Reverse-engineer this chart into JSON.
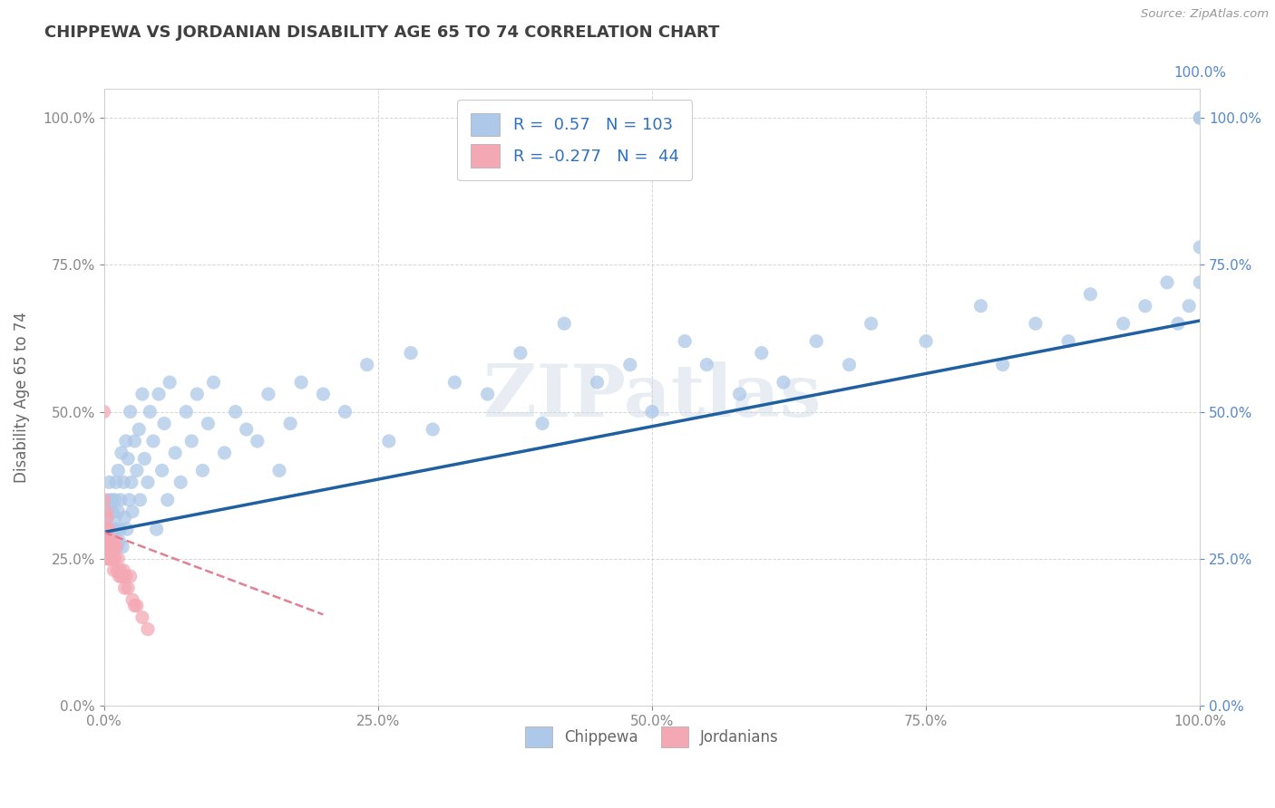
{
  "title": "CHIPPEWA VS JORDANIAN DISABILITY AGE 65 TO 74 CORRELATION CHART",
  "source": "Source: ZipAtlas.com",
  "ylabel": "Disability Age 65 to 74",
  "watermark": "ZIPatlas",
  "chippewa_R": 0.57,
  "chippewa_N": 103,
  "jordanian_R": -0.277,
  "jordanian_N": 44,
  "chippewa_color": "#adc8e8",
  "jordanian_color": "#f4a8b4",
  "chippewa_line_color": "#2060a0",
  "jordanian_line_color": "#e08090",
  "background_color": "#ffffff",
  "grid_color": "#bbbbbb",
  "title_color": "#404040",
  "legend_text_color": "#3070c0",
  "x_min": 0.0,
  "x_max": 1.0,
  "y_min": 0.0,
  "y_max": 1.05,
  "chippewa_x": [
    0.002,
    0.003,
    0.003,
    0.004,
    0.005,
    0.005,
    0.006,
    0.006,
    0.007,
    0.007,
    0.008,
    0.008,
    0.009,
    0.009,
    0.01,
    0.01,
    0.011,
    0.012,
    0.012,
    0.013,
    0.013,
    0.014,
    0.015,
    0.015,
    0.016,
    0.017,
    0.018,
    0.019,
    0.02,
    0.021,
    0.022,
    0.023,
    0.024,
    0.025,
    0.026,
    0.028,
    0.03,
    0.032,
    0.033,
    0.035,
    0.037,
    0.04,
    0.042,
    0.045,
    0.048,
    0.05,
    0.053,
    0.055,
    0.058,
    0.06,
    0.065,
    0.07,
    0.075,
    0.08,
    0.085,
    0.09,
    0.095,
    0.1,
    0.11,
    0.12,
    0.13,
    0.14,
    0.15,
    0.16,
    0.17,
    0.18,
    0.2,
    0.22,
    0.24,
    0.26,
    0.28,
    0.3,
    0.32,
    0.35,
    0.38,
    0.4,
    0.42,
    0.45,
    0.48,
    0.5,
    0.53,
    0.55,
    0.58,
    0.6,
    0.62,
    0.65,
    0.68,
    0.7,
    0.75,
    0.8,
    0.82,
    0.85,
    0.88,
    0.9,
    0.93,
    0.95,
    0.97,
    0.98,
    0.99,
    1.0,
    1.0,
    1.0,
    1.0
  ],
  "chippewa_y": [
    0.28,
    0.32,
    0.3,
    0.35,
    0.27,
    0.38,
    0.3,
    0.33,
    0.25,
    0.35,
    0.28,
    0.33,
    0.3,
    0.27,
    0.35,
    0.32,
    0.38,
    0.3,
    0.27,
    0.33,
    0.4,
    0.28,
    0.35,
    0.3,
    0.43,
    0.27,
    0.38,
    0.32,
    0.45,
    0.3,
    0.42,
    0.35,
    0.5,
    0.38,
    0.33,
    0.45,
    0.4,
    0.47,
    0.35,
    0.53,
    0.42,
    0.38,
    0.5,
    0.45,
    0.3,
    0.53,
    0.4,
    0.48,
    0.35,
    0.55,
    0.43,
    0.38,
    0.5,
    0.45,
    0.53,
    0.4,
    0.48,
    0.55,
    0.43,
    0.5,
    0.47,
    0.45,
    0.53,
    0.4,
    0.48,
    0.55,
    0.53,
    0.5,
    0.58,
    0.45,
    0.6,
    0.47,
    0.55,
    0.53,
    0.6,
    0.48,
    0.65,
    0.55,
    0.58,
    0.5,
    0.62,
    0.58,
    0.53,
    0.6,
    0.55,
    0.62,
    0.58,
    0.65,
    0.62,
    0.68,
    0.58,
    0.65,
    0.62,
    0.7,
    0.65,
    0.68,
    0.72,
    0.65,
    0.68,
    1.0,
    1.0,
    0.78,
    0.72
  ],
  "jordanian_x": [
    0.001,
    0.001,
    0.002,
    0.002,
    0.002,
    0.003,
    0.003,
    0.003,
    0.003,
    0.004,
    0.004,
    0.004,
    0.005,
    0.005,
    0.005,
    0.006,
    0.006,
    0.007,
    0.007,
    0.008,
    0.008,
    0.009,
    0.009,
    0.01,
    0.01,
    0.011,
    0.012,
    0.013,
    0.014,
    0.015,
    0.016,
    0.017,
    0.018,
    0.019,
    0.02,
    0.022,
    0.024,
    0.026,
    0.028,
    0.03,
    0.035,
    0.04,
    0.0,
    0.0
  ],
  "jordanian_y": [
    0.3,
    0.28,
    0.33,
    0.3,
    0.27,
    0.32,
    0.3,
    0.27,
    0.25,
    0.3,
    0.27,
    0.25,
    0.28,
    0.27,
    0.25,
    0.28,
    0.25,
    0.28,
    0.25,
    0.27,
    0.25,
    0.27,
    0.23,
    0.28,
    0.25,
    0.27,
    0.23,
    0.25,
    0.22,
    0.23,
    0.22,
    0.22,
    0.23,
    0.2,
    0.22,
    0.2,
    0.22,
    0.18,
    0.17,
    0.17,
    0.15,
    0.13,
    0.35,
    0.5
  ],
  "chippewa_line_x0": 0.0,
  "chippewa_line_y0": 0.295,
  "chippewa_line_x1": 1.0,
  "chippewa_line_y1": 0.655,
  "jordanian_line_x0": 0.0,
  "jordanian_line_y0": 0.295,
  "jordanian_line_x1": 0.2,
  "jordanian_line_y1": 0.155
}
